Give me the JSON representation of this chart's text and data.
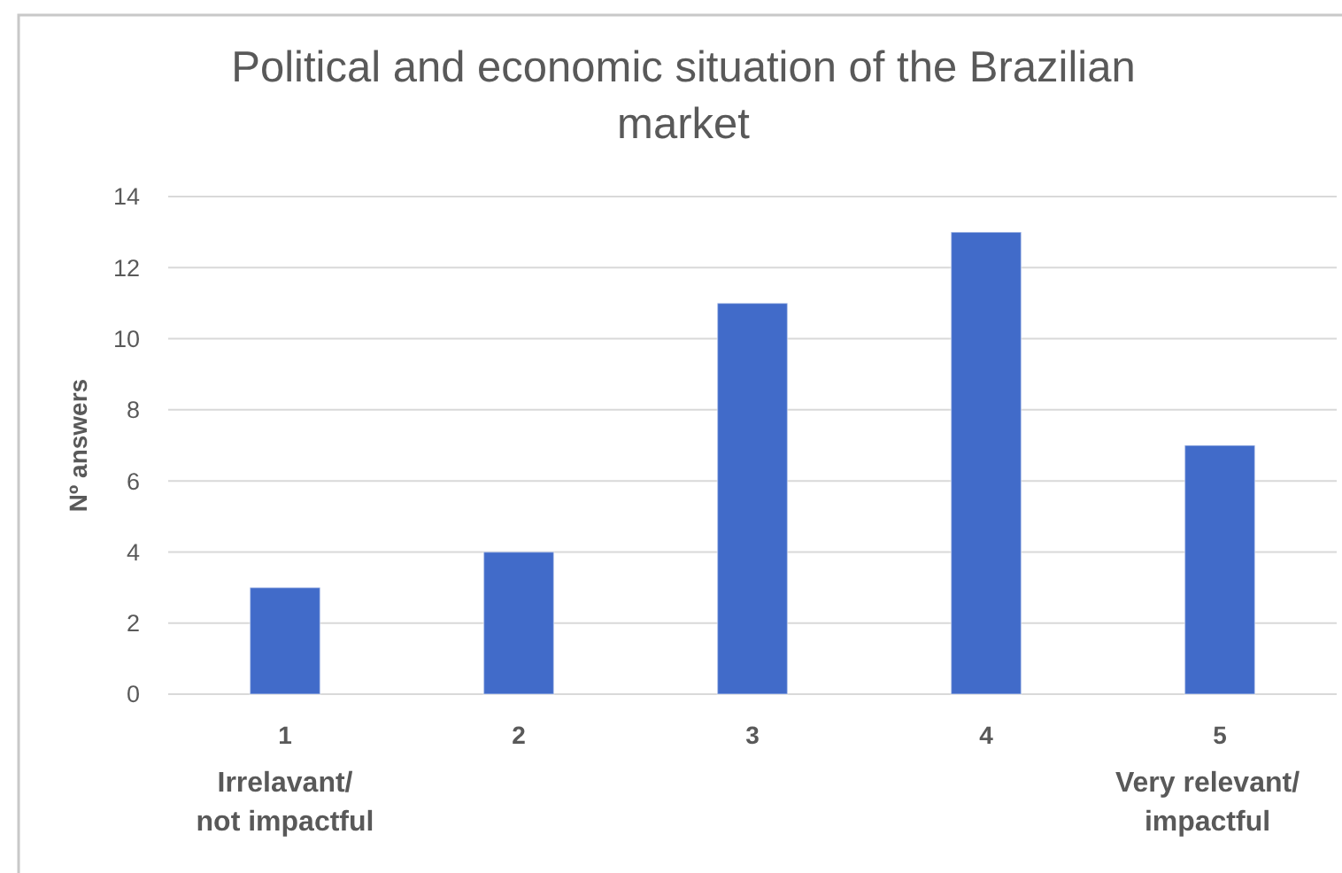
{
  "chart_data": {
    "type": "bar",
    "title": "Political and economic situation of the Brazilian market",
    "ylabel": "Nº answers",
    "categories": [
      "1",
      "2",
      "3",
      "4",
      "5"
    ],
    "values": [
      3,
      4,
      11,
      13,
      7
    ],
    "color": "#416bc9",
    "ylim": [
      0,
      14
    ],
    "yticks": [
      0,
      2,
      4,
      6,
      8,
      10,
      12,
      14
    ],
    "grid": "y",
    "annotations": [
      "Irrelavant/ not impactful",
      "Very relevant/ impactful"
    ]
  }
}
